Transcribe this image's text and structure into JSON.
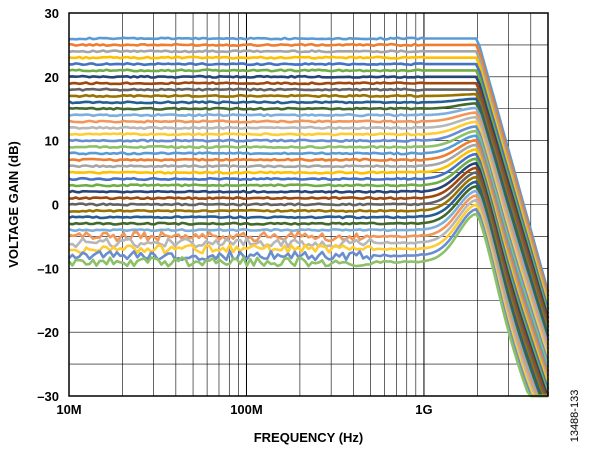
{
  "chart_data": {
    "type": "line",
    "title": "",
    "xlabel": "FREQUENCY (Hz)",
    "ylabel": "VOLTAGE GAIN (dB)",
    "x_scale": "log",
    "xlim": [
      10000000,
      5000000000
    ],
    "ylim": [
      -30,
      30
    ],
    "x_ticks": [
      10000000,
      100000000,
      1000000000
    ],
    "x_tick_labels": [
      "10M",
      "100M",
      "1G"
    ],
    "y_ticks": [
      -30,
      -20,
      -10,
      0,
      10,
      20,
      30
    ],
    "y_tick_labels": [
      "–30",
      "–20",
      "–10",
      "0",
      "10",
      "20",
      "30"
    ],
    "grid": true,
    "legend": "none",
    "figure_id": "13488-133",
    "series_description": "Family of gain-step frequency responses; flat gain from 10M to ~1G, peaking near 2G, rolling off above",
    "flat_gains_db": [
      26,
      25,
      24,
      23,
      22,
      21,
      20,
      19,
      18,
      17,
      16,
      15,
      14,
      13,
      12,
      11,
      10,
      9,
      8,
      7,
      6,
      5,
      4,
      3,
      2,
      1,
      0,
      -1,
      -2,
      -3,
      -4,
      -5,
      -6,
      -7,
      -8,
      -9
    ],
    "colors": [
      "#5b9bd5",
      "#ed7d31",
      "#a5a5a5",
      "#ffc000",
      "#4472c4",
      "#70ad47",
      "#264478",
      "#9e480e",
      "#636363",
      "#997300",
      "#255e91",
      "#43682b",
      "#7cafdd",
      "#f1975a",
      "#b7b7b7",
      "#ffcd33",
      "#698ed0",
      "#8cc168"
    ]
  }
}
